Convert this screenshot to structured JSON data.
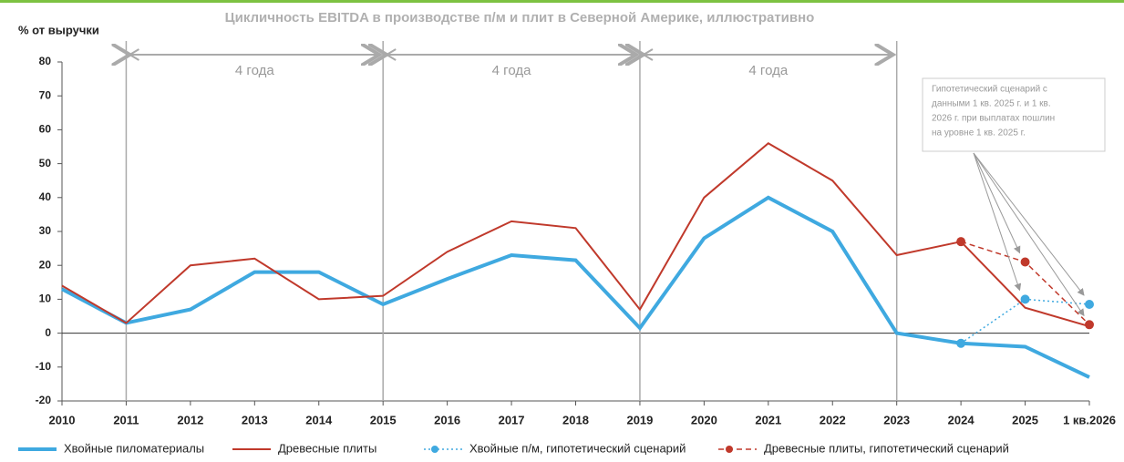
{
  "chart_data": {
    "type": "line",
    "title": "Цикличность EBITDA в производстве п/м и плит в Северной Америке, иллюстративно",
    "y_label": "% от выручки",
    "categories": [
      "2010",
      "2011",
      "2012",
      "2013",
      "2014",
      "2015",
      "2016",
      "2017",
      "2018",
      "2019",
      "2020",
      "2021",
      "2022",
      "2023",
      "2024",
      "2025",
      "1 кв.2026"
    ],
    "series": [
      {
        "name": "Хвойные пиломатериалы",
        "color": "#3fa9e0",
        "style": "solid",
        "width": 4,
        "values": [
          13,
          3,
          7,
          18,
          18,
          8.5,
          16,
          23,
          21.5,
          1.5,
          28,
          40,
          30,
          0,
          -3,
          -4,
          -13
        ]
      },
      {
        "name": "Древесные плиты",
        "color": "#c0392b",
        "style": "solid",
        "width": 2,
        "values": [
          14,
          3,
          20,
          22,
          10,
          11,
          24,
          33,
          31,
          7,
          40,
          56,
          45,
          23,
          27,
          7.5,
          2
        ]
      },
      {
        "name": "Хвойные п/м, гипотетический сценарий",
        "color": "#3fa9e0",
        "style": "dotted",
        "width": 1.5,
        "marker": true,
        "values": [
          null,
          null,
          null,
          null,
          null,
          null,
          null,
          null,
          null,
          null,
          null,
          null,
          null,
          null,
          -3,
          10,
          8.5
        ]
      },
      {
        "name": "Древесные плиты, гипотетический сценарий",
        "color": "#c0392b",
        "style": "dashed",
        "width": 1.5,
        "marker": true,
        "values": [
          null,
          null,
          null,
          null,
          null,
          null,
          null,
          null,
          null,
          null,
          null,
          null,
          null,
          null,
          27,
          21,
          2.5
        ]
      }
    ],
    "ylim": [
      -20,
      80
    ],
    "yticks": [
      -20,
      -10,
      0,
      10,
      20,
      30,
      40,
      50,
      60,
      70,
      80
    ],
    "period_boundaries": [
      "2011",
      "2015",
      "2019",
      "2023"
    ],
    "period_labels": [
      "4 года",
      "4 года",
      "4 года"
    ],
    "annotation": [
      "Гипотетический сценарий с",
      "данными 1 кв. 2025 г. и 1 кв.",
      "2026 г. при выплатах пошлин",
      "на уровне 1 кв. 2025 г."
    ],
    "legend": "bottom"
  }
}
